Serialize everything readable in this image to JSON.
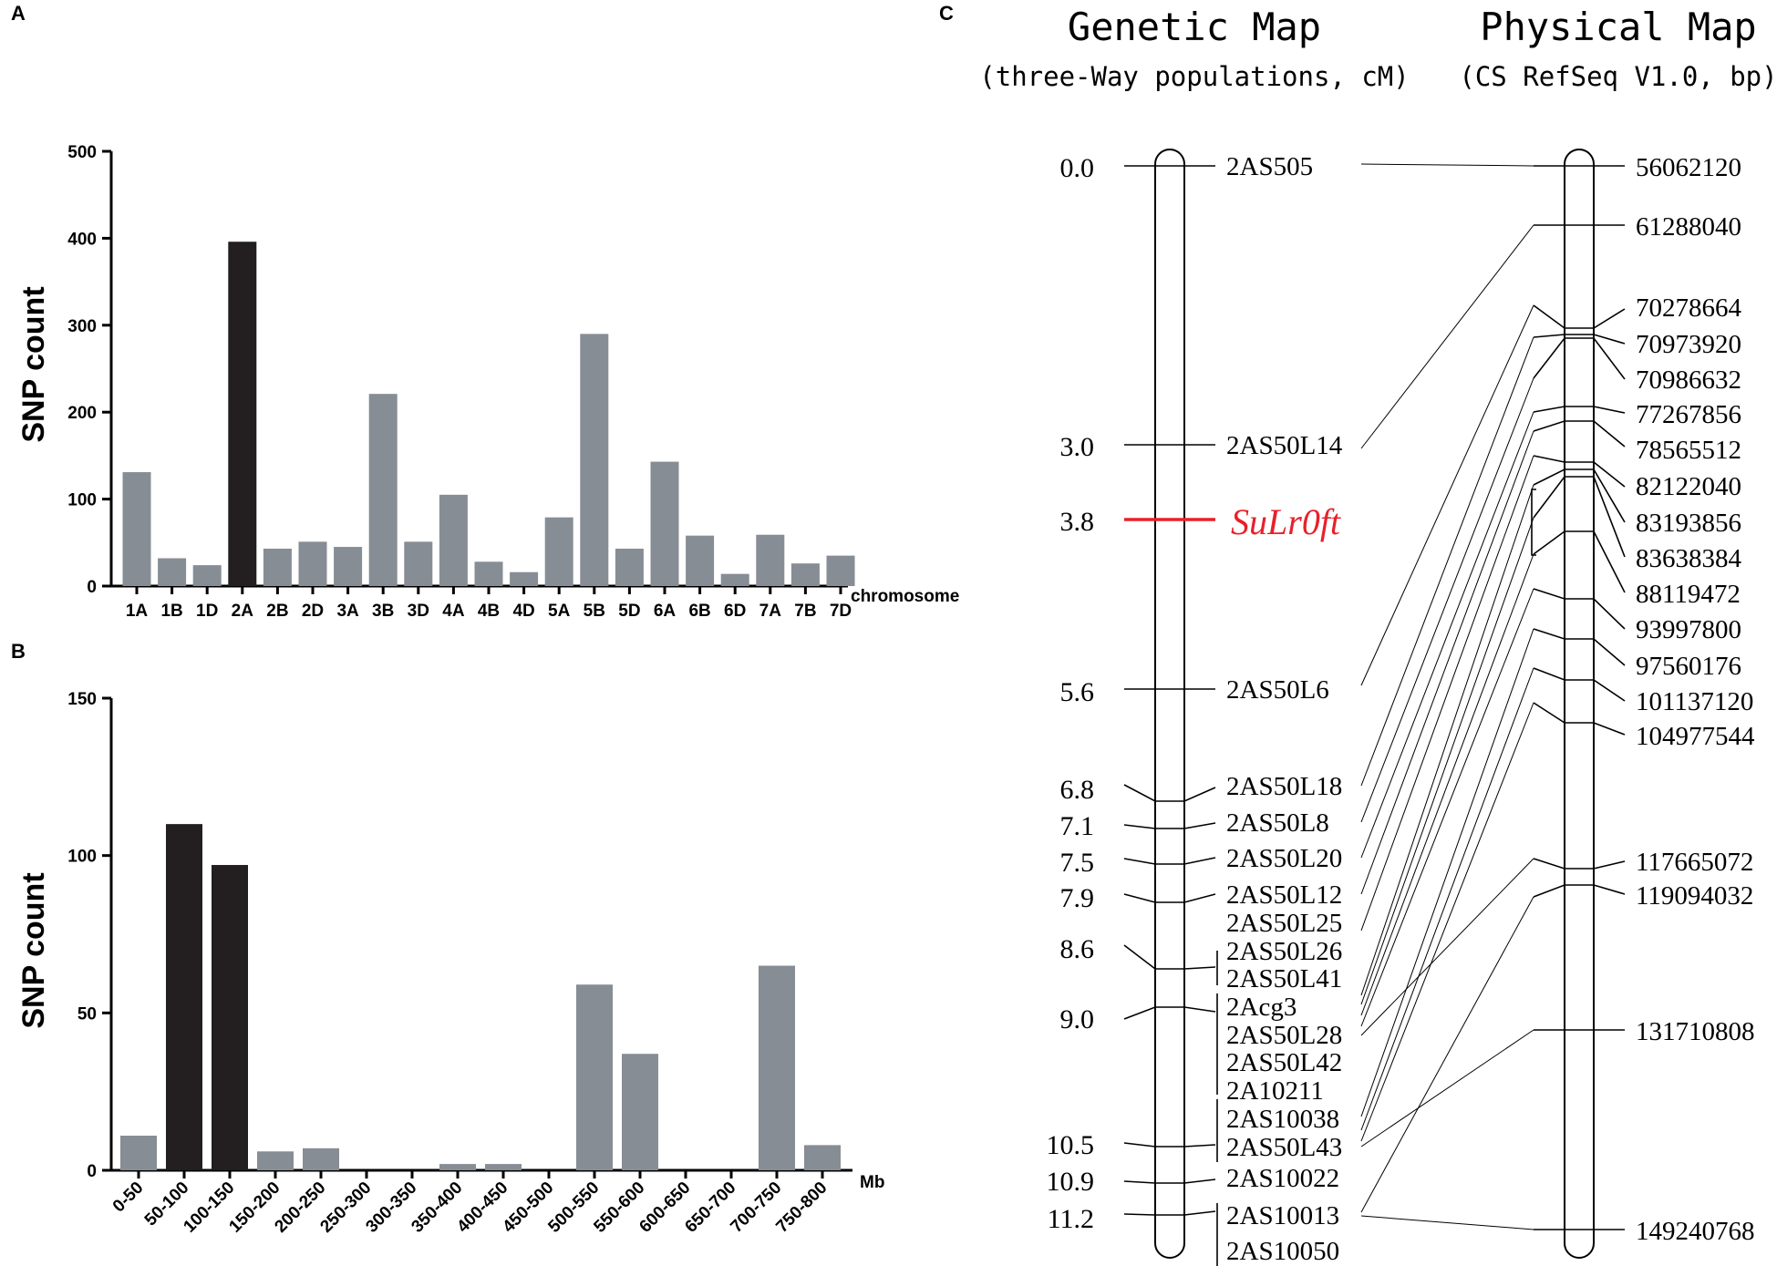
{
  "panels": {
    "A": "A",
    "B": "B",
    "C": "C"
  },
  "colors": {
    "highlight": "#231f20",
    "normal": "#878d94",
    "gene": "#e8202a"
  },
  "chart_data": [
    {
      "type": "bar",
      "panel": "A",
      "ylabel": "SNP  count",
      "xlabel": "chromosome",
      "ylim": [
        0,
        500
      ],
      "yticks": [
        "0",
        "100",
        "200",
        "300",
        "400",
        "500"
      ],
      "categories": [
        "1A",
        "1B",
        "1D",
        "2A",
        "2B",
        "2D",
        "3A",
        "3B",
        "3D",
        "4A",
        "4B",
        "4D",
        "5A",
        "5B",
        "5D",
        "6A",
        "6B",
        "6D",
        "7A",
        "7B",
        "7D"
      ],
      "values": [
        131,
        32,
        24,
        396,
        43,
        51,
        45,
        221,
        51,
        105,
        28,
        16,
        79,
        290,
        43,
        143,
        58,
        14,
        59,
        26,
        35
      ],
      "highlight": [
        false,
        false,
        false,
        true,
        false,
        false,
        false,
        false,
        false,
        false,
        false,
        false,
        false,
        false,
        false,
        false,
        false,
        false,
        false,
        false,
        false
      ]
    },
    {
      "type": "bar",
      "panel": "B",
      "ylabel": "SNP  count",
      "xlabel": "Mb",
      "ylim": [
        0,
        150
      ],
      "yticks": [
        "0",
        "50",
        "100",
        "150"
      ],
      "categories": [
        "0-50",
        "50-100",
        "100-150",
        "150-200",
        "200-250",
        "250-300",
        "300-350",
        "350-400",
        "400-450",
        "450-500",
        "500-550",
        "550-600",
        "600-650",
        "650-700",
        "700-750",
        "750-800"
      ],
      "values": [
        11,
        110,
        97,
        6,
        7,
        0,
        0,
        2,
        2,
        0,
        59,
        37,
        0,
        0,
        65,
        8
      ],
      "highlight": [
        false,
        true,
        true,
        false,
        false,
        false,
        false,
        false,
        false,
        false,
        false,
        false,
        false,
        false,
        false,
        false
      ]
    }
  ],
  "map": {
    "genetic_title": "Genetic Map",
    "genetic_subtitle": "(three-Way populations, cM)",
    "physical_title": "Physical Map",
    "physical_subtitle": "(CS RefSeq V1.0, bp)",
    "gene": "SuLr0ft",
    "positions": [
      "0.0",
      "3.0",
      "3.8",
      "5.6",
      "6.8",
      "7.1",
      "7.5",
      "7.9",
      "8.6",
      "9.0",
      "10.5",
      "10.9",
      "11.2"
    ],
    "markers": [
      "2AS505",
      "2AS50L14",
      "2AS50L6",
      "2AS50L18",
      "2AS50L8",
      "2AS50L20",
      "2AS50L12",
      "2AS50L25",
      "2AS50L26",
      "2AS50L41",
      "2Acg3",
      "2AS50L28",
      "2AS50L42",
      "2A10211",
      "2AS10038",
      "2AS50L43",
      "2AS10022",
      "2AS10013",
      "2AS10050"
    ],
    "physical_positions": [
      "56062120",
      "61288040",
      "70278664",
      "70973920",
      "70986632",
      "77267856",
      "78565512",
      "82122040",
      "83193856",
      "83638384",
      "88119472",
      "93997800",
      "97560176",
      "101137120",
      "104977544",
      "117665072",
      "119094032",
      "131710808",
      "149240768"
    ]
  }
}
